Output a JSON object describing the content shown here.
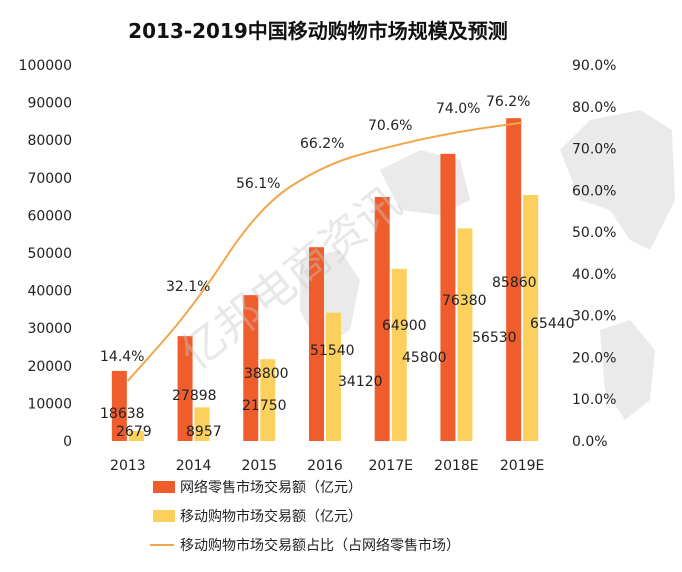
{
  "chart_data": {
    "type": "bar",
    "title": "2013-2019中国移动购物市场规模及预测",
    "categories": [
      "2013",
      "2014",
      "2015",
      "2016",
      "2017E",
      "2018E",
      "2019E"
    ],
    "series": [
      {
        "name": "网络零售市场交易额（亿元）",
        "type": "bar",
        "axis": "left",
        "values": [
          18638,
          27898,
          38800,
          51540,
          64900,
          76380,
          85860
        ],
        "color": "#ef5d2c"
      },
      {
        "name": "移动购物市场交易额（亿元）",
        "type": "bar",
        "axis": "left",
        "values": [
          2679,
          8957,
          21750,
          34120,
          45800,
          56530,
          65440
        ],
        "color": "#fcd05c"
      },
      {
        "name": "移动购物市场交易额占比（占网络零售市场）",
        "type": "line",
        "axis": "right",
        "values": [
          14.4,
          32.1,
          56.1,
          66.2,
          70.6,
          74.0,
          76.2
        ],
        "color": "#f2a54a"
      }
    ],
    "left_axis": {
      "min": 0,
      "max": 100000,
      "step": 10000,
      "ticks": [
        "0",
        "10000",
        "20000",
        "30000",
        "40000",
        "50000",
        "60000",
        "70000",
        "80000",
        "90000",
        "100000"
      ]
    },
    "right_axis": {
      "min": 0,
      "max": 90,
      "step": 10,
      "ticks": [
        "0.0%",
        "10.0%",
        "20.0%",
        "30.0%",
        "40.0%",
        "50.0%",
        "60.0%",
        "70.0%",
        "80.0%",
        "90.0%"
      ]
    },
    "line_labels": [
      "14.4%",
      "32.1%",
      "56.1%",
      "66.2%",
      "70.6%",
      "74.0%",
      "76.2%"
    ],
    "legend": [
      "网络零售市场交易额（亿元）",
      "移动购物市场交易额（亿元）",
      "移动购物市场交易额占比（占网络零售市场）"
    ],
    "legend_position": "bottom",
    "grid": false,
    "watermark": "亿邦电商资讯"
  }
}
